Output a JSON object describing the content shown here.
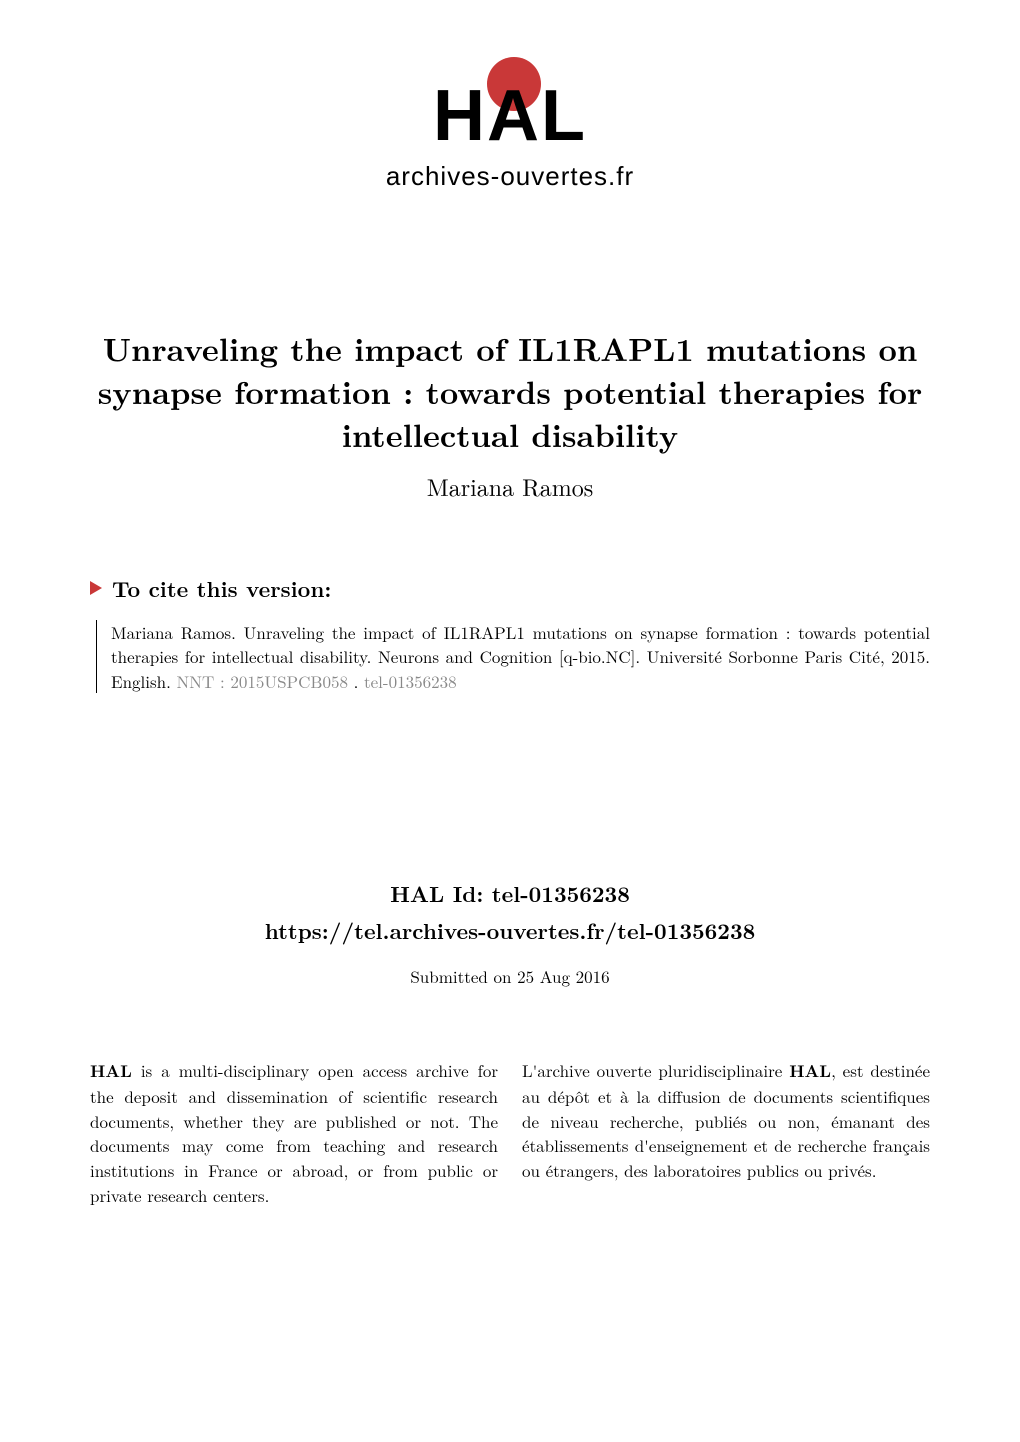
{
  "logo": {
    "hal_text": "HAL",
    "archives_text": "archives-ouvertes.fr",
    "accent_color": "#c93838"
  },
  "title": {
    "line1": "Unraveling the impact of IL1RAPL1 mutations on",
    "line2": "synapse formation : towards potential therapies for",
    "line3": "intellectual disability",
    "author": "Mariana Ramos",
    "title_fontsize": 32,
    "author_fontsize": 24
  },
  "cite": {
    "header": "To cite this version:",
    "citation": "Mariana Ramos. Unraveling the impact of IL1RAPL1 mutations on synapse formation : towards potential therapies for intellectual disability. Neurons and Cognition [q-bio.NC]. Université Sorbonne Paris Cité, 2015. English. ",
    "nnt_label": "NNT : 2015USPCB058",
    "tel_id": "tel-01356238",
    "header_fontsize": 22,
    "body_fontsize": 17
  },
  "hal_id": {
    "id_label": "HAL Id: tel-01356238",
    "url": "https://tel.archives-ouvertes.fr/tel-01356238",
    "submitted": "Submitted on 25 Aug 2016",
    "fontsize": 22,
    "submitted_fontsize": 17
  },
  "description": {
    "left_bold": "HAL",
    "left_text": " is a multi-disciplinary open access archive for the deposit and dissemination of scientific research documents, whether they are published or not. The documents may come from teaching and research institutions in France or abroad, or from public or private research centers.",
    "right_text_pre": "L'archive ouverte pluridisciplinaire ",
    "right_bold": "HAL",
    "right_text_post": ", est destinée au dépôt et à la diffusion de documents scientifiques de niveau recherche, publiés ou non, émanant des établissements d'enseignement et de recherche français ou étrangers, des laboratoires publics ou privés.",
    "fontsize": 17
  },
  "colors": {
    "background": "#ffffff",
    "text": "#000000",
    "accent": "#c93838",
    "gray": "#888888"
  }
}
